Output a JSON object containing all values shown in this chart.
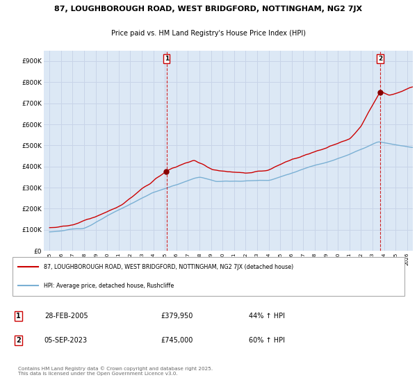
{
  "title1": "87, LOUGHBOROUGH ROAD, WEST BRIDGFORD, NOTTINGHAM, NG2 7JX",
  "title2": "Price paid vs. HM Land Registry's House Price Index (HPI)",
  "background_color": "#ffffff",
  "grid_color": "#c8d4e8",
  "plot_bg": "#dce8f5",
  "red_line_color": "#cc0000",
  "blue_line_color": "#7ab0d4",
  "purchase1_date_x": 2005.15,
  "purchase1_value": 379950,
  "purchase2_date_x": 2023.68,
  "purchase2_value": 745000,
  "dashed_line_color": "#cc0000",
  "ylim_max": 950000,
  "ylim_min": 0,
  "xlim_min": 1994.5,
  "xlim_max": 2026.5,
  "yticks": [
    0,
    100000,
    200000,
    300000,
    400000,
    500000,
    600000,
    700000,
    800000,
    900000
  ],
  "ytick_labels": [
    "£0",
    "£100K",
    "£200K",
    "£300K",
    "£400K",
    "£500K",
    "£600K",
    "£700K",
    "£800K",
    "£900K"
  ],
  "xticks": [
    1995,
    1996,
    1997,
    1998,
    1999,
    2000,
    2001,
    2002,
    2003,
    2004,
    2005,
    2006,
    2007,
    2008,
    2009,
    2010,
    2011,
    2012,
    2013,
    2014,
    2015,
    2016,
    2017,
    2018,
    2019,
    2020,
    2021,
    2022,
    2023,
    2024,
    2025,
    2026
  ],
  "legend_label1": "87, LOUGHBOROUGH ROAD, WEST BRIDGFORD, NOTTINGHAM, NG2 7JX (detached house)",
  "legend_label2": "HPI: Average price, detached house, Rushcliffe",
  "sale1_date": "28-FEB-2005",
  "sale1_price": "£379,950",
  "sale1_hpi": "44% ↑ HPI",
  "sale2_date": "05-SEP-2023",
  "sale2_price": "£745,000",
  "sale2_hpi": "60% ↑ HPI",
  "footer": "Contains HM Land Registry data © Crown copyright and database right 2025.\nThis data is licensed under the Open Government Licence v3.0."
}
